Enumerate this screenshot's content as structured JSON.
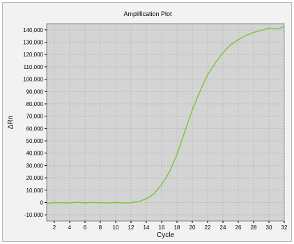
{
  "chart_data": {
    "type": "line",
    "title": "Amplification Plot",
    "xlabel": "Cycle",
    "ylabel": "ΔRn",
    "xlim": [
      1,
      32
    ],
    "ylim": [
      -15000,
      145000
    ],
    "x_ticks": [
      2,
      4,
      6,
      8,
      10,
      12,
      14,
      16,
      18,
      20,
      22,
      24,
      26,
      28,
      30,
      32
    ],
    "y_ticks": [
      -10000,
      0,
      10000,
      20000,
      30000,
      40000,
      50000,
      60000,
      70000,
      80000,
      90000,
      100000,
      110000,
      120000,
      130000,
      140000
    ],
    "y_tick_labels": [
      "-10,000",
      "0",
      "10,000",
      "20,000",
      "30,000",
      "40,000",
      "50,000",
      "60,000",
      "70,000",
      "80,000",
      "90,000",
      "100,000",
      "110,000",
      "120,000",
      "130,000",
      "140,000"
    ],
    "grid": true,
    "colors": {
      "line": "#7dc431",
      "plot_background": "#d4d4d4",
      "grid": "#b0b0b0"
    },
    "series": [
      {
        "x": [
          1,
          2,
          3,
          4,
          5,
          6,
          7,
          8,
          9,
          10,
          11,
          12,
          13,
          14,
          15,
          16,
          17,
          18,
          19,
          20,
          21,
          22,
          23,
          24,
          25,
          26,
          27,
          28,
          29,
          30,
          31,
          32
        ],
        "values": [
          -800,
          -100,
          -200,
          -300,
          200,
          -300,
          100,
          -200,
          -300,
          0,
          -300,
          -200,
          800,
          3000,
          7000,
          14500,
          24500,
          39000,
          57000,
          75000,
          90000,
          103500,
          113000,
          121500,
          128000,
          132000,
          135500,
          138000,
          139500,
          141500,
          140800,
          142500
        ]
      }
    ]
  }
}
